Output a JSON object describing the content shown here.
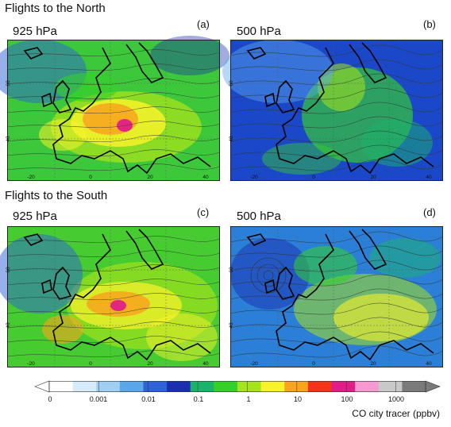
{
  "sections": {
    "north": "Flights to the North",
    "south": "Flights to the South"
  },
  "panels": [
    {
      "id": "a",
      "level": "925 hPa",
      "label": "(a)"
    },
    {
      "id": "b",
      "level": "500 hPa",
      "label": "(b)"
    },
    {
      "id": "c",
      "level": "925 hPa",
      "label": "(c)"
    },
    {
      "id": "d",
      "level": "500 hPa",
      "label": "(d)"
    }
  ],
  "axes": {
    "lon_ticks": [
      "-20",
      "0",
      "20",
      "40"
    ],
    "lat_ticks": [
      "60",
      "40"
    ]
  },
  "colorbar": {
    "title": "CO city tracer (ppbv)",
    "tick_labels": [
      "0",
      "0.001",
      "0.01",
      "0.1",
      "1",
      "10",
      "100",
      "1000"
    ],
    "colors": [
      "#ffffff",
      "#d6ecfb",
      "#9fd0f4",
      "#5aa8ea",
      "#2e62d8",
      "#1a2fb0",
      "#19b36b",
      "#35d12a",
      "#a6e31c",
      "#f7f22a",
      "#f8a51d",
      "#f3341b",
      "#e11d89",
      "#f59ad1",
      "#c8c8c8",
      "#7a7a7a"
    ]
  }
}
